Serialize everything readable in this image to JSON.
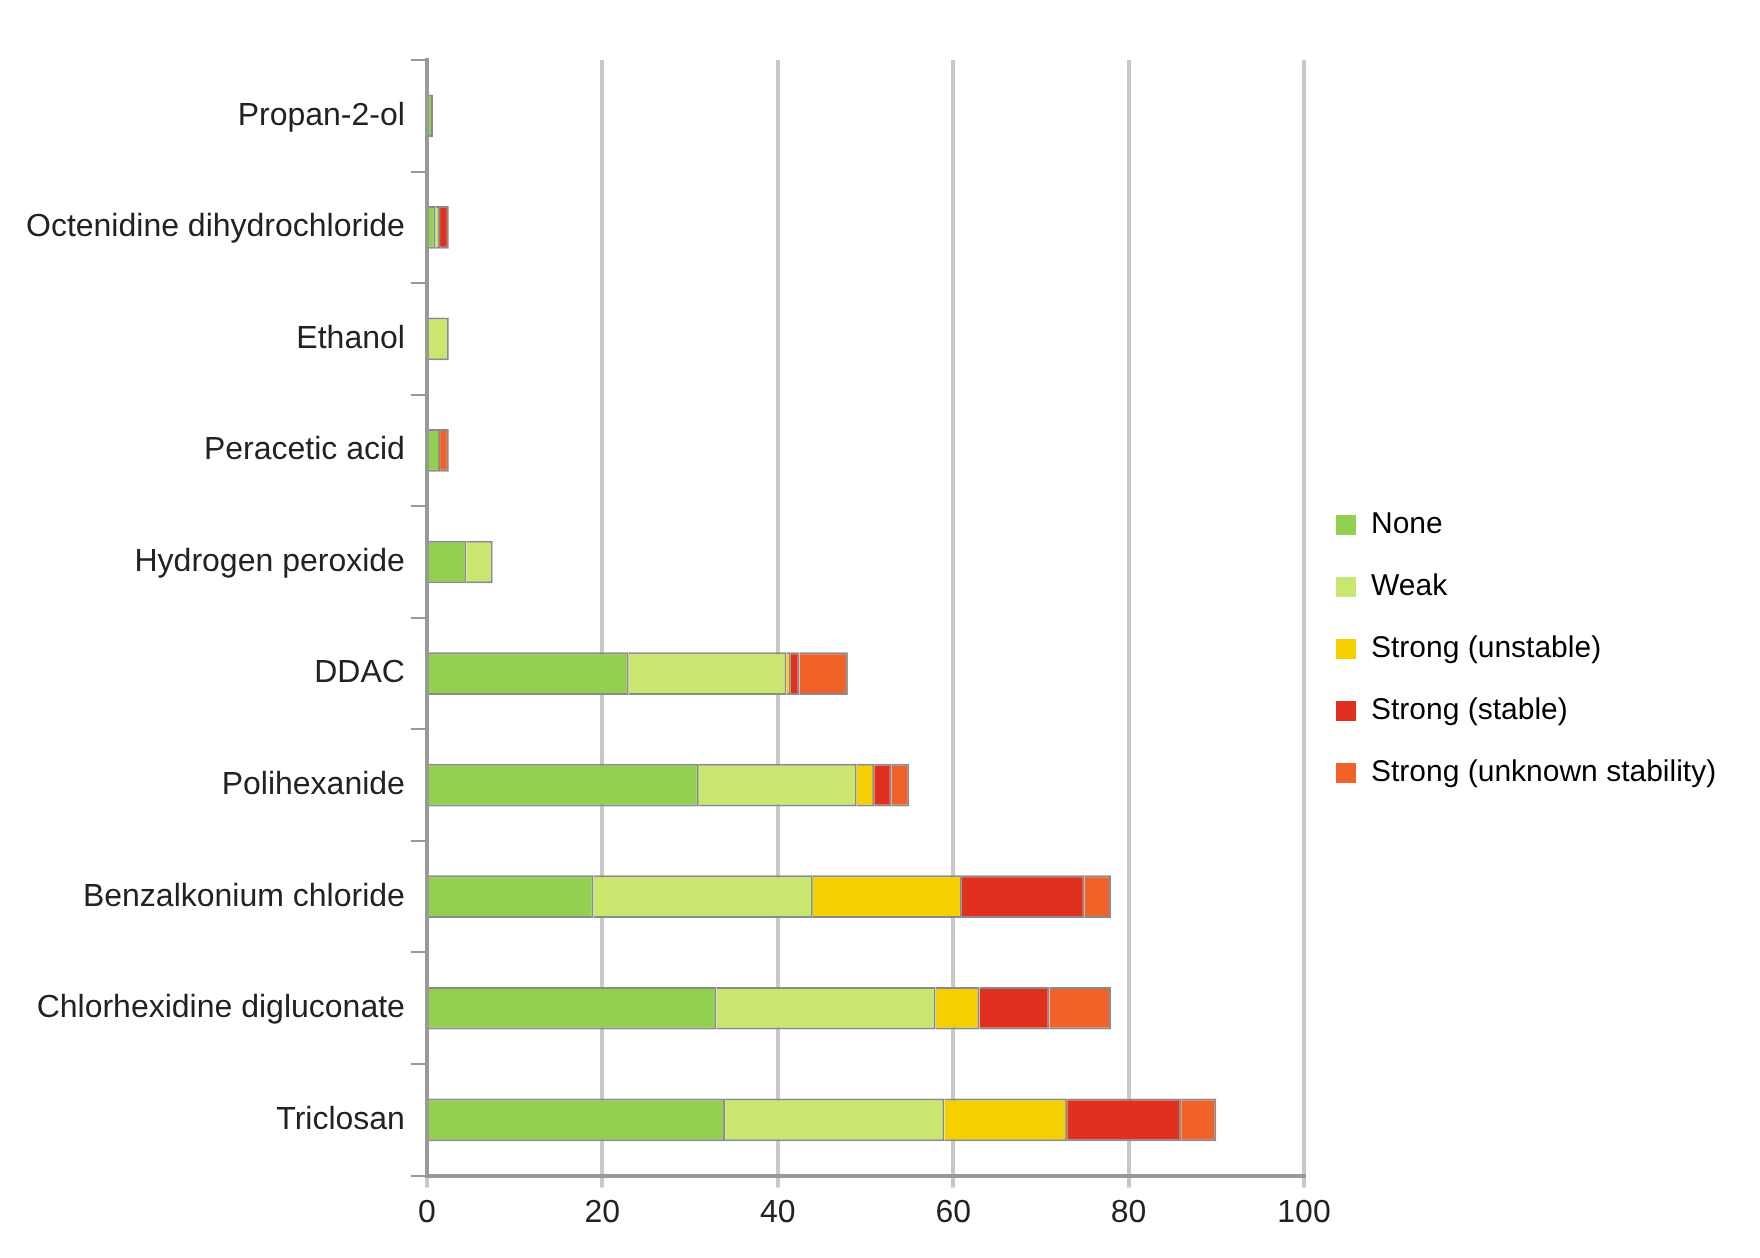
{
  "chart_data": {
    "type": "bar",
    "orientation": "horizontal",
    "stacked": true,
    "categories": [
      "Propan-2-ol",
      "Octenidine dihydrochloride",
      "Ethanol",
      "Peracetic acid",
      "Hydrogen peroxide",
      "DDAC",
      "Polihexanide",
      "Benzalkonium chloride",
      "Chlorhexidine digluconate",
      "Triclosan"
    ],
    "series": [
      {
        "name": "None",
        "color": "#92d050",
        "values": [
          0.7,
          1,
          0,
          1.5,
          4.5,
          23,
          31,
          19,
          33,
          34
        ]
      },
      {
        "name": "Weak",
        "color": "#c9e66f",
        "values": [
          0,
          0.5,
          2.5,
          0,
          3,
          18,
          18,
          25,
          25,
          25
        ]
      },
      {
        "name": "Strong (unstable)",
        "color": "#f5d000",
        "values": [
          0,
          0,
          0,
          0,
          0,
          0.5,
          2,
          17,
          5,
          14
        ]
      },
      {
        "name": "Strong (stable)",
        "color": "#e03020",
        "values": [
          0,
          1,
          0,
          0,
          0,
          1,
          2,
          14,
          8,
          13
        ]
      },
      {
        "name": "Strong (unknown stability)",
        "color": "#f06228",
        "values": [
          0,
          0,
          0,
          1,
          0,
          5.5,
          2,
          3,
          7,
          4
        ]
      }
    ],
    "xlim": [
      0,
      100
    ],
    "xticks": [
      0,
      20,
      40,
      60,
      80,
      100
    ],
    "grid": "x",
    "legend": "right"
  }
}
